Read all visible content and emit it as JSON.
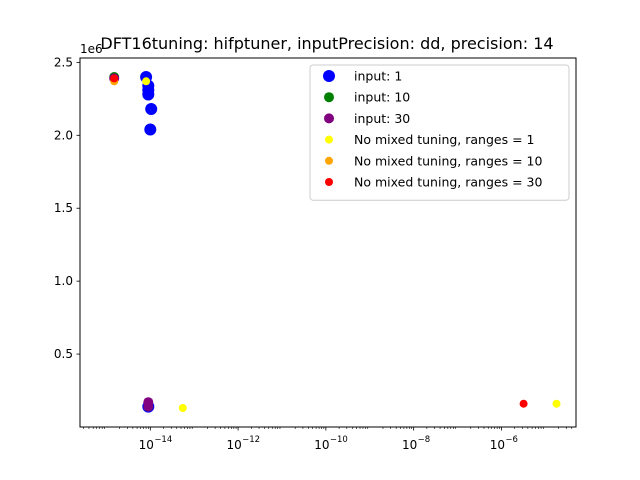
{
  "chart_data": {
    "type": "scatter",
    "title": "DFT16tuning: hifptuner, inputPrecision: dd, precision: 14",
    "xlabel": "",
    "ylabel": "",
    "x_scale": "log",
    "xlim": [
      2.5e-16,
      5e-05
    ],
    "ylim": [
      0,
      2.53
    ],
    "y_offset_label": "1e6",
    "x_ticks": [
      {
        "value": 1e-14,
        "label": "10",
        "exp": "−14"
      },
      {
        "value": 1e-12,
        "label": "10",
        "exp": "−12"
      },
      {
        "value": 1e-10,
        "label": "10",
        "exp": "−10"
      },
      {
        "value": 1e-08,
        "label": "10",
        "exp": "−8"
      },
      {
        "value": 1e-06,
        "label": "10",
        "exp": "−6"
      }
    ],
    "y_ticks": [
      {
        "value": 0.5,
        "label": "0.5"
      },
      {
        "value": 1.0,
        "label": "1.0"
      },
      {
        "value": 1.5,
        "label": "1.5"
      },
      {
        "value": 2.0,
        "label": "2.0"
      },
      {
        "value": 2.5,
        "label": "2.5"
      }
    ],
    "legend_position": "top-right",
    "series": [
      {
        "name": "input: 1",
        "color": "#0000ff",
        "marker_size": "large",
        "points": [
          {
            "x": 8e-15,
            "y": 2.4
          },
          {
            "x": 9e-15,
            "y": 2.34
          },
          {
            "x": 9e-15,
            "y": 2.31
          },
          {
            "x": 9e-15,
            "y": 2.28
          },
          {
            "x": 1.05e-14,
            "y": 2.18
          },
          {
            "x": 1e-14,
            "y": 2.04
          },
          {
            "x": 9e-15,
            "y": 0.14
          }
        ]
      },
      {
        "name": "input: 10",
        "color": "#008000",
        "marker_size": "medium",
        "points": [
          {
            "x": 1.5e-15,
            "y": 2.4
          },
          {
            "x": 9e-15,
            "y": 0.14
          }
        ]
      },
      {
        "name": "input: 30",
        "color": "#800080",
        "marker_size": "medium",
        "points": [
          {
            "x": 1.5e-15,
            "y": 2.39
          },
          {
            "x": 9e-15,
            "y": 0.17
          },
          {
            "x": 9e-15,
            "y": 0.14
          }
        ]
      },
      {
        "name": "No mixed tuning, ranges = 1",
        "color": "#ffff00",
        "marker_size": "small",
        "points": [
          {
            "x": 8e-15,
            "y": 2.37
          },
          {
            "x": 5.5e-14,
            "y": 0.13
          },
          {
            "x": 1.8e-05,
            "y": 0.16
          }
        ]
      },
      {
        "name": "No mixed tuning, ranges = 10",
        "color": "#ffa500",
        "marker_size": "small",
        "points": [
          {
            "x": 1.5e-15,
            "y": 2.37
          }
        ]
      },
      {
        "name": "No mixed tuning, ranges = 30",
        "color": "#ff0000",
        "marker_size": "small",
        "points": [
          {
            "x": 1.5e-15,
            "y": 2.39
          },
          {
            "x": 3.2e-06,
            "y": 0.16
          }
        ]
      }
    ]
  }
}
